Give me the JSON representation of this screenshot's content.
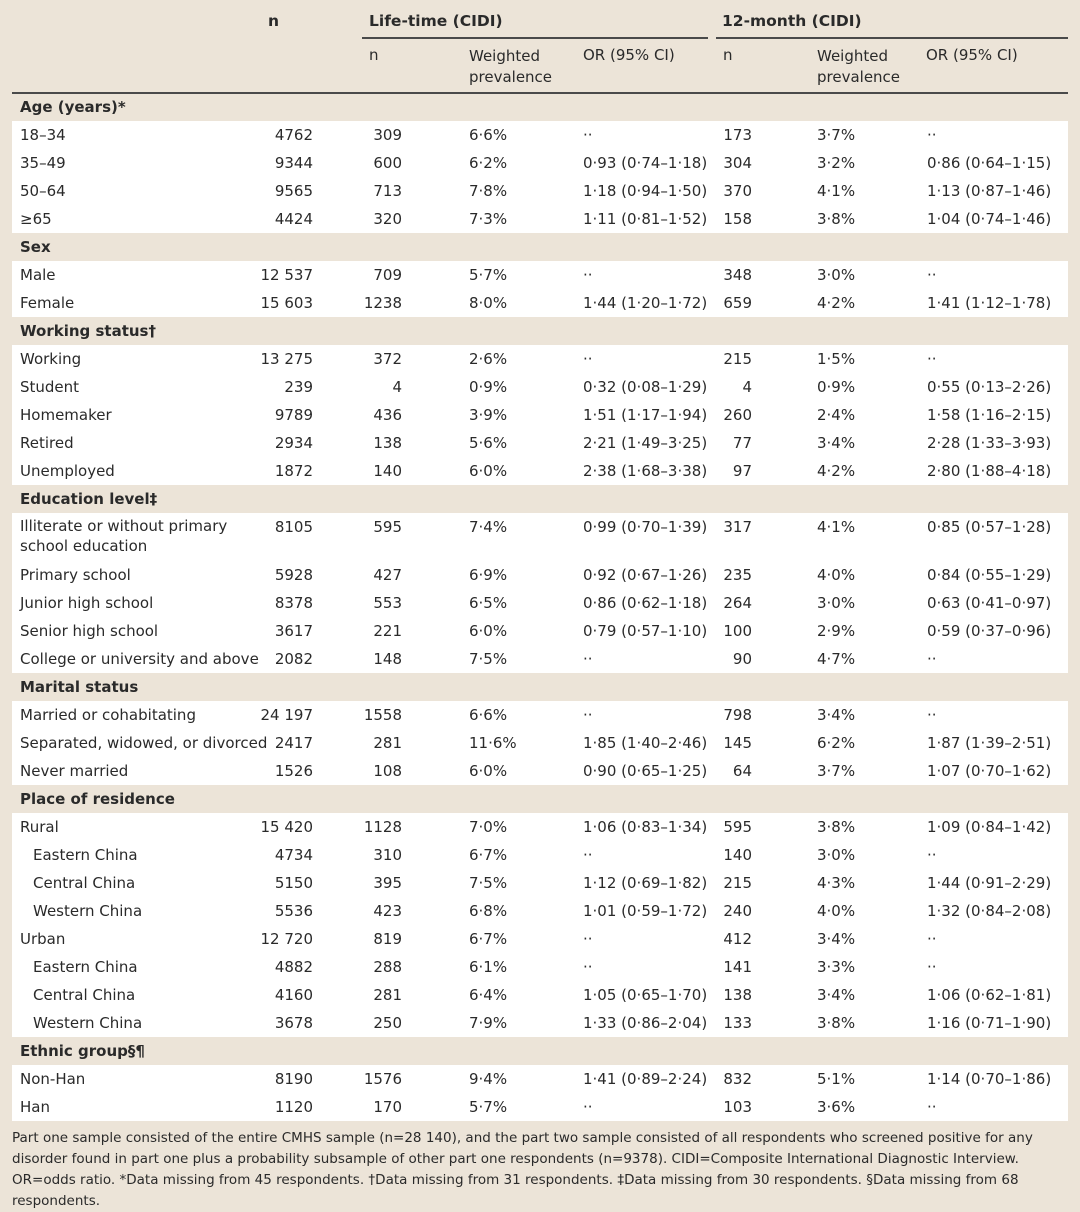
{
  "header": {
    "n": "n",
    "lifetime": "Life-time (CIDI)",
    "twelve_month": "12-month (CIDI)",
    "sub_n": "n",
    "sub_wp": "Weighted prevalence",
    "sub_or": "OR (95% CI)"
  },
  "rows": [
    {
      "type": "section",
      "label": "Age (years)*"
    },
    {
      "label": "18–34",
      "n": "4762",
      "n1": "309",
      "wp1": "6·6%",
      "or1": "··",
      "n2": "173",
      "wp2": "3·7%",
      "or2": "··"
    },
    {
      "label": "35–49",
      "n": "9344",
      "n1": "600",
      "wp1": "6·2%",
      "or1": "0·93 (0·74–1·18)",
      "n2": "304",
      "wp2": "3·2%",
      "or2": "0·86 (0·64–1·15)"
    },
    {
      "label": "50–64",
      "n": "9565",
      "n1": "713",
      "wp1": "7·8%",
      "or1": "1·18 (0·94–1·50)",
      "n2": "370",
      "wp2": "4·1%",
      "or2": "1·13 (0·87–1·46)"
    },
    {
      "label": "≥65",
      "n": "4424",
      "n1": "320",
      "wp1": "7·3%",
      "or1": "1·11 (0·81–1·52)",
      "n2": "158",
      "wp2": "3·8%",
      "or2": "1·04 (0·74–1·46)"
    },
    {
      "type": "section",
      "label": "Sex"
    },
    {
      "label": "Male",
      "n": "12 537",
      "n1": "709",
      "wp1": "5·7%",
      "or1": "··",
      "n2": "348",
      "wp2": "3·0%",
      "or2": "··"
    },
    {
      "label": "Female",
      "n": "15 603",
      "n1": "1238",
      "wp1": "8·0%",
      "or1": "1·44 (1·20–1·72)",
      "n2": "659",
      "wp2": "4·2%",
      "or2": "1·41 (1·12–1·78)"
    },
    {
      "type": "section",
      "label": "Working status†"
    },
    {
      "label": "Working",
      "n": "13 275",
      "n1": "372",
      "wp1": "2·6%",
      "or1": "··",
      "n2": "215",
      "wp2": "1·5%",
      "or2": "··"
    },
    {
      "label": "Student",
      "n": "239",
      "n1": "4",
      "wp1": "0·9%",
      "or1": "0·32 (0·08–1·29)",
      "n2": "4",
      "wp2": "0·9%",
      "or2": "0·55 (0·13–2·26)"
    },
    {
      "label": "Homemaker",
      "n": "9789",
      "n1": "436",
      "wp1": "3·9%",
      "or1": "1·51 (1·17–1·94)",
      "n2": "260",
      "wp2": "2·4%",
      "or2": "1·58 (1·16–2·15)"
    },
    {
      "label": "Retired",
      "n": "2934",
      "n1": "138",
      "wp1": "5·6%",
      "or1": "2·21 (1·49–3·25)",
      "n2": "77",
      "wp2": "3·4%",
      "or2": "2·28 (1·33–3·93)"
    },
    {
      "label": "Unemployed",
      "n": "1872",
      "n1": "140",
      "wp1": "6·0%",
      "or1": "2·38 (1·68–3·38)",
      "n2": "97",
      "wp2": "4·2%",
      "or2": "2·80 (1·88–4·18)"
    },
    {
      "type": "section",
      "label": "Education level‡"
    },
    {
      "label": "Illiterate or without primary school education",
      "tall": true,
      "n": "8105",
      "n1": "595",
      "wp1": "7·4%",
      "or1": "0·99 (0·70–1·39)",
      "n2": "317",
      "wp2": "4·1%",
      "or2": "0·85 (0·57–1·28)"
    },
    {
      "label": "Primary school",
      "n": "5928",
      "n1": "427",
      "wp1": "6·9%",
      "or1": "0·92 (0·67–1·26)",
      "n2": "235",
      "wp2": "4·0%",
      "or2": "0·84 (0·55–1·29)"
    },
    {
      "label": "Junior high school",
      "n": "8378",
      "n1": "553",
      "wp1": "6·5%",
      "or1": "0·86 (0·62–1·18)",
      "n2": "264",
      "wp2": "3·0%",
      "or2": "0·63 (0·41–0·97)"
    },
    {
      "label": "Senior high school",
      "n": "3617",
      "n1": "221",
      "wp1": "6·0%",
      "or1": "0·79 (0·57–1·10)",
      "n2": "100",
      "wp2": "2·9%",
      "or2": "0·59 (0·37–0·96)"
    },
    {
      "label": "College or university and above",
      "n": "2082",
      "n1": "148",
      "wp1": "7·5%",
      "or1": "··",
      "n2": "90",
      "wp2": "4·7%",
      "or2": "··"
    },
    {
      "type": "section",
      "label": "Marital status"
    },
    {
      "label": "Married or cohabitating",
      "n": "24 197",
      "n1": "1558",
      "wp1": "6·6%",
      "or1": "··",
      "n2": "798",
      "wp2": "3·4%",
      "or2": "··"
    },
    {
      "label": "Separated, widowed, or divorced",
      "n": "2417",
      "n1": "281",
      "wp1": "11·6%",
      "or1": "1·85 (1·40–2·46)",
      "n2": "145",
      "wp2": "6·2%",
      "or2": "1·87 (1·39–2·51)"
    },
    {
      "label": "Never married",
      "n": "1526",
      "n1": "108",
      "wp1": "6·0%",
      "or1": "0·90 (0·65–1·25)",
      "n2": "64",
      "wp2": "3·7%",
      "or2": "1·07 (0·70–1·62)"
    },
    {
      "type": "section",
      "label": "Place of residence"
    },
    {
      "label": "Rural",
      "n": "15 420",
      "n1": "1128",
      "wp1": "7·0%",
      "or1": "1·06 (0·83–1·34)",
      "n2": "595",
      "wp2": "3·8%",
      "or2": "1·09 (0·84–1·42)"
    },
    {
      "label": "Eastern China",
      "indent": true,
      "n": "4734",
      "n1": "310",
      "wp1": "6·7%",
      "or1": "··",
      "n2": "140",
      "wp2": "3·0%",
      "or2": "··"
    },
    {
      "label": "Central China",
      "indent": true,
      "n": "5150",
      "n1": "395",
      "wp1": "7·5%",
      "or1": "1·12 (0·69–1·82)",
      "n2": "215",
      "wp2": "4·3%",
      "or2": "1·44 (0·91–2·29)"
    },
    {
      "label": "Western China",
      "indent": true,
      "n": "5536",
      "n1": "423",
      "wp1": "6·8%",
      "or1": "1·01 (0·59–1·72)",
      "n2": "240",
      "wp2": "4·0%",
      "or2": "1·32 (0·84–2·08)"
    },
    {
      "label": "Urban",
      "n": "12 720",
      "n1": "819",
      "wp1": "6·7%",
      "or1": "··",
      "n2": "412",
      "wp2": "3·4%",
      "or2": "··"
    },
    {
      "label": "Eastern China",
      "indent": true,
      "n": "4882",
      "n1": "288",
      "wp1": "6·1%",
      "or1": "··",
      "n2": "141",
      "wp2": "3·3%",
      "or2": "··"
    },
    {
      "label": "Central China",
      "indent": true,
      "n": "4160",
      "n1": "281",
      "wp1": "6·4%",
      "or1": "1·05 (0·65–1·70)",
      "n2": "138",
      "wp2": "3·4%",
      "or2": "1·06 (0·62–1·81)"
    },
    {
      "label": "Western China",
      "indent": true,
      "n": "3678",
      "n1": "250",
      "wp1": "7·9%",
      "or1": "1·33 (0·86–2·04)",
      "n2": "133",
      "wp2": "3·8%",
      "or2": "1·16 (0·71–1·90)"
    },
    {
      "type": "section",
      "label": "Ethnic group§¶"
    },
    {
      "label": "Non-Han",
      "n": "8190",
      "n1": "1576",
      "wp1": "9·4%",
      "or1": "1·41 (0·89–2·24)",
      "n2": "832",
      "wp2": "5·1%",
      "or2": "1·14 (0·70–1·86)"
    },
    {
      "label": "Han",
      "n": "1120",
      "n1": "170",
      "wp1": "5·7%",
      "or1": "··",
      "n2": "103",
      "wp2": "3·6%",
      "or2": "··"
    }
  ],
  "footnote": "Part one sample consisted of the entire CMHS sample (n=28 140), and the part two sample consisted of all respondents who screened positive for any disorder found in part one plus a probability subsample of other part one respondents (n=9378). CIDI=Composite International Diagnostic Interview. OR=odds ratio. *Data missing from 45 respondents. †Data missing from 31 respondents. ‡Data missing from 30 respondents. §Data missing from 68 respondents."
}
